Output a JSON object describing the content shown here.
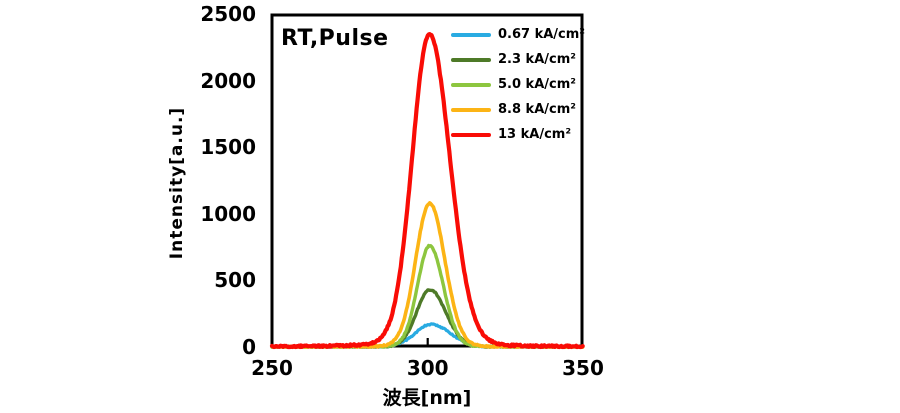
{
  "chart_data": {
    "type": "line",
    "annotation": "RT,Pulse",
    "xlabel": "波長[nm]",
    "ylabel": "Intensity[a.u.]",
    "x_range": [
      250,
      350
    ],
    "y_range": [
      0,
      2500
    ],
    "x_ticks": [
      "250",
      "300",
      "350"
    ],
    "y_ticks": [
      "0",
      "500",
      "1000",
      "1500",
      "2000",
      "2500"
    ],
    "grid": false,
    "legend_position": "top-right-inside",
    "frame_color": "#000000",
    "background": "#FFFFFF",
    "series": [
      {
        "label": "0.67 kA/cm²",
        "color": "#29ABE2",
        "peak_nm": 301.2,
        "peak_intensity": 170,
        "fwhm_nm": 13.4,
        "sigma_left_nm": 5.2,
        "sigma_right_nm": 6.2,
        "lorentz_fraction": 0.04,
        "lorentz_gamma_nm": 7,
        "line_width": 3.2,
        "noise_au": 5
      },
      {
        "label": "2.3 kA/cm²",
        "color": "#4E7A28",
        "peak_nm": 300.8,
        "peak_intensity": 430,
        "fwhm_nm": 11.1,
        "sigma_left_nm": 4.3,
        "sigma_right_nm": 5.1,
        "lorentz_fraction": 0.04,
        "lorentz_gamma_nm": 6,
        "line_width": 3.4,
        "noise_au": 5
      },
      {
        "label": "5.0 kA/cm²",
        "color": "#8DC63F",
        "peak_nm": 300.7,
        "peak_intensity": 760,
        "fwhm_nm": 9.8,
        "sigma_left_nm": 3.9,
        "sigma_right_nm": 4.4,
        "lorentz_fraction": 0.04,
        "lorentz_gamma_nm": 6,
        "line_width": 3.4,
        "noise_au": 5
      },
      {
        "label": "8.8 kA/cm²",
        "color": "#FCB415",
        "peak_nm": 300.7,
        "peak_intensity": 1080,
        "fwhm_nm": 11.1,
        "sigma_left_nm": 4.5,
        "sigma_right_nm": 4.9,
        "lorentz_fraction": 0.04,
        "lorentz_gamma_nm": 6,
        "line_width": 3.6,
        "noise_au": 5
      },
      {
        "label": "13 kA/cm²",
        "color": "#F90C06",
        "peak_nm": 300.6,
        "peak_intensity": 2350,
        "fwhm_nm": 14.3,
        "sigma_left_nm": 5.5,
        "sigma_right_nm": 6.6,
        "lorentz_fraction": 0.06,
        "lorentz_gamma_nm": 8,
        "line_width": 4.2,
        "noise_au": 7
      }
    ]
  }
}
